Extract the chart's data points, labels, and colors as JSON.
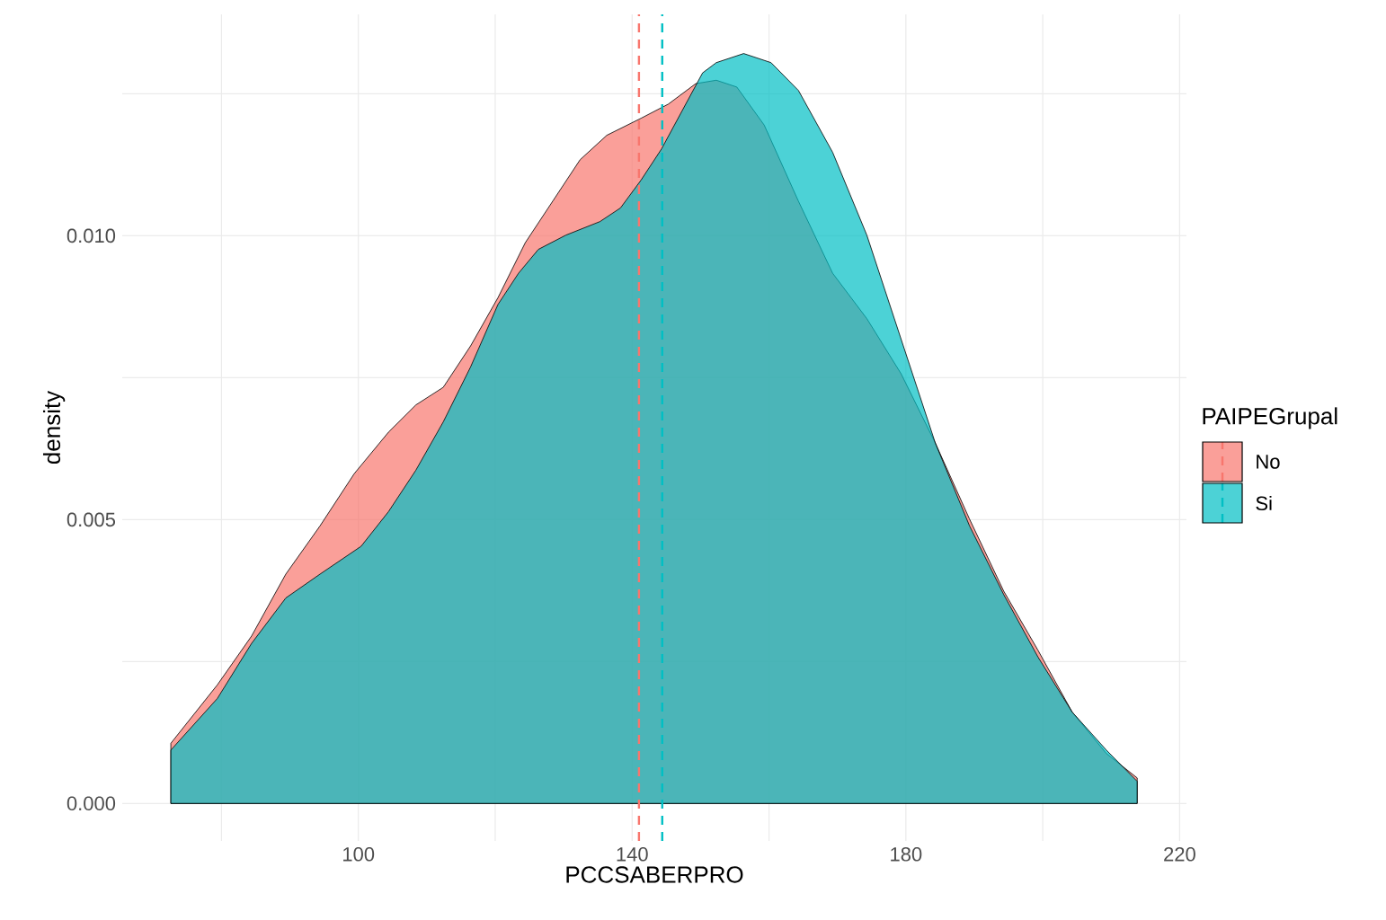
{
  "chart_data": {
    "type": "area",
    "xlabel": "PCCSABERPRO",
    "ylabel": "density",
    "legend_title": "PAIPEGrupal",
    "legend": "right",
    "grid": true,
    "xlim": [
      65.5,
      221
    ],
    "ylim": [
      -0.00066,
      0.0139
    ],
    "xticks": [
      {
        "value": 80,
        "label": null
      },
      100,
      {
        "value": 120,
        "label": null
      },
      140,
      {
        "value": 160,
        "label": null
      },
      180,
      {
        "value": 200,
        "label": null
      },
      220
    ],
    "yticks": [
      {
        "value": 0,
        "label": "0.000"
      },
      {
        "value": 0.0025,
        "label": null
      },
      {
        "value": 0.005,
        "label": "0.005"
      },
      {
        "value": 0.0075,
        "label": null
      },
      {
        "value": 0.01,
        "label": "0.010"
      },
      {
        "value": 0.0125,
        "label": null
      }
    ],
    "series": [
      {
        "name": "No",
        "color": "#F8766D",
        "x": [
          72.6,
          79.4,
          84.4,
          89.4,
          94.4,
          99.4,
          104.4,
          108.4,
          112.4,
          116.4,
          120.4,
          124.4,
          128.4,
          132.4,
          136.3,
          141.3,
          145.3,
          149.3,
          152.3,
          155.3,
          159.3,
          164.3,
          169.3,
          174.3,
          179.3,
          184.3,
          189.3,
          194.3,
          199.3,
          204.3,
          209.3,
          213.8
        ],
        "values": [
          0.00106,
          0.00209,
          0.00295,
          0.00404,
          0.00489,
          0.00581,
          0.00654,
          0.00702,
          0.00733,
          0.00806,
          0.00891,
          0.00988,
          0.01061,
          0.01134,
          0.01177,
          0.01207,
          0.01232,
          0.01268,
          0.01274,
          0.01262,
          0.01195,
          0.01061,
          0.00934,
          0.00854,
          0.00757,
          0.00635,
          0.00501,
          0.00374,
          0.0027,
          0.00161,
          0.00088,
          0.00045
        ]
      },
      {
        "name": "Si",
        "color": "#00BFC4",
        "x": [
          72.6,
          79.4,
          84.4,
          89.4,
          94.4,
          100.4,
          104.4,
          108.4,
          112.4,
          116.4,
          120.4,
          123.4,
          126.3,
          130.3,
          135.3,
          138.3,
          141.3,
          144.3,
          147.3,
          150.3,
          152.3,
          156.3,
          160.3,
          164.3,
          169.3,
          174.3,
          179.3,
          184.3,
          189.3,
          194.3,
          199.3,
          204.3,
          209.3,
          213.8
        ],
        "values": [
          0.00094,
          0.00185,
          0.00282,
          0.00362,
          0.00404,
          0.00453,
          0.00514,
          0.00587,
          0.00672,
          0.00769,
          0.00879,
          0.00934,
          0.00976,
          0.01001,
          0.01025,
          0.01049,
          0.01098,
          0.01153,
          0.0122,
          0.01287,
          0.01305,
          0.01321,
          0.01305,
          0.01256,
          0.01147,
          0.01001,
          0.00818,
          0.00635,
          0.00489,
          0.00368,
          0.00258,
          0.00161,
          0.00094,
          0.00039
        ]
      }
    ],
    "ref_lines": [
      {
        "axis": "x",
        "value": 141.0,
        "color": "#F8766D",
        "line_style": "dashed"
      },
      {
        "axis": "x",
        "value": 144.4,
        "color": "#00BFC4",
        "line_style": "dashed"
      }
    ]
  }
}
